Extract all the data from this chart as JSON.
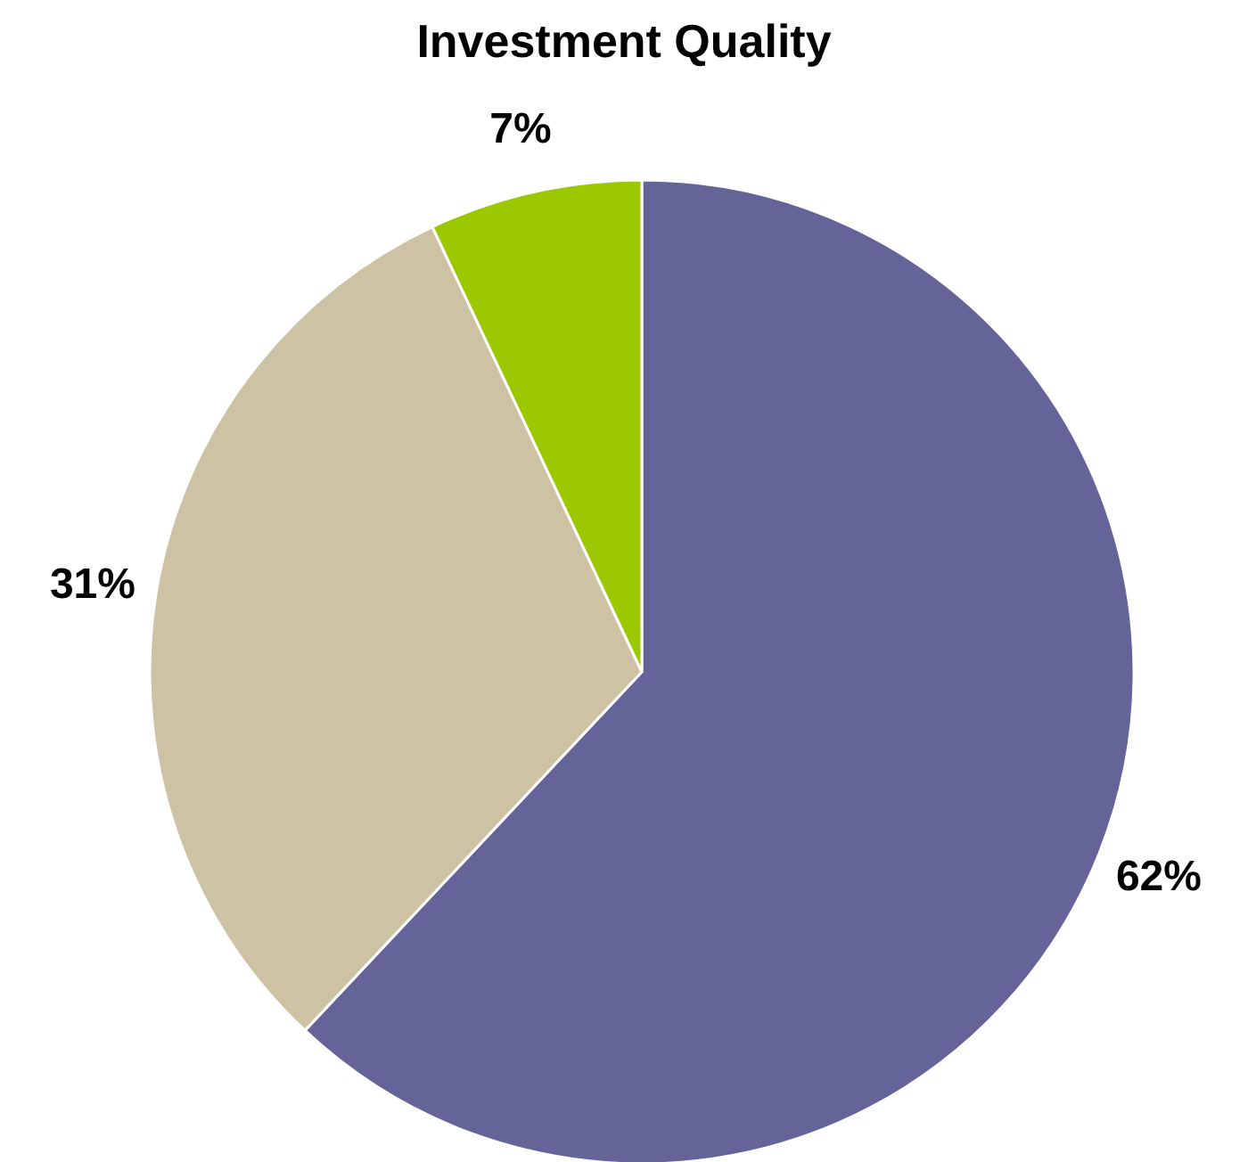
{
  "chart_data": {
    "type": "pie",
    "title": "Investment Quality",
    "categories": [
      null,
      null,
      null
    ],
    "values": [
      62,
      31,
      7
    ],
    "colors": [
      "#656499",
      "#cdc2a3",
      "#9bc800"
    ],
    "value_labels": [
      "62%",
      "31%",
      "7%"
    ]
  }
}
